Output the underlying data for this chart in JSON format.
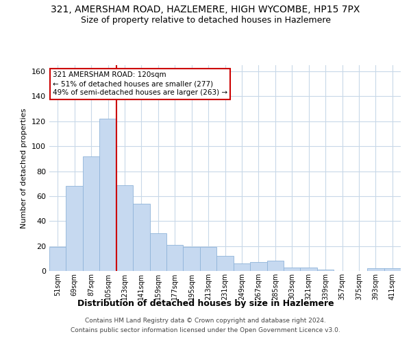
{
  "title_line1": "321, AMERSHAM ROAD, HAZLEMERE, HIGH WYCOMBE, HP15 7PX",
  "title_line2": "Size of property relative to detached houses in Hazlemere",
  "xlabel": "Distribution of detached houses by size in Hazlemere",
  "ylabel": "Number of detached properties",
  "categories": [
    "51sqm",
    "69sqm",
    "87sqm",
    "105sqm",
    "123sqm",
    "141sqm",
    "159sqm",
    "177sqm",
    "195sqm",
    "213sqm",
    "231sqm",
    "249sqm",
    "267sqm",
    "285sqm",
    "303sqm",
    "321sqm",
    "339sqm",
    "357sqm",
    "375sqm",
    "393sqm",
    "411sqm"
  ],
  "values": [
    19,
    68,
    92,
    122,
    69,
    54,
    30,
    21,
    19,
    19,
    12,
    6,
    7,
    8,
    3,
    3,
    1,
    0,
    0,
    2,
    2
  ],
  "bar_color": "#c6d9f0",
  "bar_edge_color": "#8fb4d9",
  "highlight_index": 4,
  "highlight_line_color": "#cc0000",
  "annotation_text": "321 AMERSHAM ROAD: 120sqm\n← 51% of detached houses are smaller (277)\n49% of semi-detached houses are larger (263) →",
  "annotation_box_edge": "#cc0000",
  "ylim": [
    0,
    165
  ],
  "yticks": [
    0,
    20,
    40,
    60,
    80,
    100,
    120,
    140,
    160
  ],
  "footer_line1": "Contains HM Land Registry data © Crown copyright and database right 2024.",
  "footer_line2": "Contains public sector information licensed under the Open Government Licence v3.0.",
  "bg_color": "#ffffff",
  "grid_color": "#c8d8e8",
  "title_fontsize": 10,
  "subtitle_fontsize": 9,
  "axis_label_fontsize": 8,
  "tick_fontsize": 7,
  "bar_width": 1.0
}
